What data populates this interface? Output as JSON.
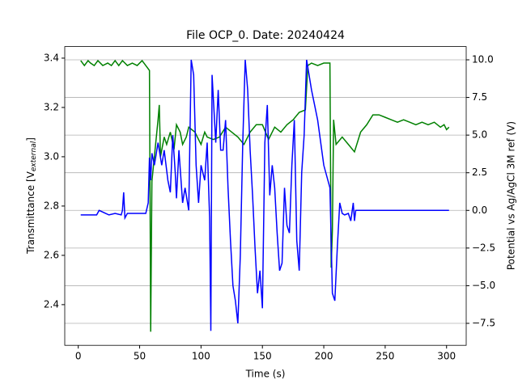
{
  "chart_data": {
    "type": "line",
    "title": "File OCP_0. Date: 20240424",
    "xlabel": "Time (s)",
    "ylabel_main": "Transmittance [V",
    "ylabel_sub": "external",
    "ylabel_end": "]",
    "y2label": "Potential vs Ag/AgCl 3M ref (V)",
    "xlim": [
      -11,
      316
    ],
    "xticks": [
      0,
      50,
      100,
      150,
      200,
      250,
      300
    ],
    "ylim": [
      2.235,
      3.447
    ],
    "yticks": [
      2.4,
      2.6,
      2.8,
      {
        "value": 3.0,
        "label": "3.0"
      },
      3.2,
      3.4
    ],
    "y2lim": [
      -8.96,
      10.88
    ],
    "y2ticks": [
      {
        "value": -7.5,
        "label": "−7.5"
      },
      {
        "value": -5,
        "label": "−5.0"
      },
      {
        "value": -2.5,
        "label": "−2.5"
      },
      {
        "value": 0,
        "label": "0.0"
      },
      {
        "value": 2.5,
        "label": "2.5"
      },
      {
        "value": 5,
        "label": "5.0"
      },
      {
        "value": 7.5,
        "label": "7.5"
      },
      {
        "value": 10,
        "label": "10.0"
      }
    ],
    "grid": "y2",
    "ylabel_color": "green",
    "y2label_color": "#0000ff",
    "series": [
      {
        "color": "green",
        "axis": "y",
        "x": [
          2,
          5,
          8,
          10,
          13,
          16,
          20,
          24,
          27,
          30,
          33,
          36,
          40,
          44,
          48,
          52,
          55,
          58,
          59,
          60,
          62,
          64,
          65,
          66,
          67,
          70,
          72,
          75,
          78,
          80,
          83,
          85,
          88,
          90,
          95,
          100,
          103,
          105,
          110,
          115,
          120,
          125,
          130,
          135,
          140,
          145,
          150,
          155,
          160,
          165,
          170,
          175,
          180,
          185,
          187,
          190,
          195,
          200,
          205,
          206,
          207,
          208,
          210,
          215,
          220,
          225,
          230,
          235,
          240,
          245,
          250,
          255,
          260,
          265,
          270,
          275,
          280,
          285,
          290,
          295,
          298,
          300,
          302
        ],
        "values": [
          3.39,
          3.37,
          3.39,
          3.38,
          3.37,
          3.39,
          3.37,
          3.38,
          3.37,
          3.39,
          3.37,
          3.39,
          3.37,
          3.38,
          3.37,
          3.39,
          3.37,
          3.35,
          2.29,
          2.9,
          3.0,
          3.1,
          3.15,
          3.21,
          3.0,
          3.08,
          3.05,
          3.1,
          3.03,
          3.13,
          3.1,
          3.05,
          3.08,
          3.12,
          3.1,
          3.05,
          3.1,
          3.08,
          3.07,
          3.08,
          3.12,
          3.1,
          3.08,
          3.05,
          3.1,
          3.13,
          3.13,
          3.07,
          3.12,
          3.1,
          3.13,
          3.15,
          3.18,
          3.19,
          3.37,
          3.38,
          3.37,
          3.38,
          3.38,
          2.55,
          2.7,
          3.15,
          3.05,
          3.08,
          3.05,
          3.02,
          3.1,
          3.13,
          3.17,
          3.17,
          3.16,
          3.15,
          3.14,
          3.15,
          3.14,
          3.13,
          3.14,
          3.13,
          3.14,
          3.12,
          3.13,
          3.11,
          3.12
        ]
      },
      {
        "color": "#0000ff",
        "axis": "y2",
        "x": [
          2,
          10,
          15,
          17,
          25,
          30,
          35,
          36,
          37,
          38,
          40,
          50,
          55,
          57,
          58,
          59,
          60,
          62,
          65,
          68,
          70,
          73,
          75,
          77,
          79,
          80,
          82,
          85,
          87,
          90,
          92,
          94,
          96,
          98,
          100,
          103,
          105,
          107,
          108,
          109,
          110,
          112,
          114,
          116,
          118,
          120,
          122,
          124,
          126,
          128,
          130,
          132,
          134,
          136,
          138,
          140,
          142,
          144,
          146,
          148,
          150,
          152,
          154,
          156,
          158,
          160,
          162,
          164,
          166,
          168,
          170,
          172,
          174,
          176,
          178,
          180,
          182,
          184,
          186,
          188,
          190,
          195,
          200,
          205,
          207,
          209,
          211,
          213,
          215,
          217,
          220,
          222,
          224,
          225,
          226,
          260,
          300,
          302
        ],
        "values": [
          -0.3,
          -0.3,
          -0.3,
          0.0,
          -0.3,
          -0.2,
          -0.3,
          0.0,
          1.2,
          -0.5,
          -0.2,
          -0.2,
          -0.2,
          0.5,
          3.5,
          2.0,
          3.8,
          3.0,
          4.5,
          3.0,
          4.0,
          2.0,
          1.2,
          5.0,
          2.5,
          0.8,
          4.0,
          0.5,
          1.5,
          0.0,
          10.0,
          9.0,
          3.0,
          0.5,
          3.0,
          2.0,
          4.5,
          -0.5,
          -8.0,
          9.0,
          7.5,
          4.5,
          8.0,
          4.0,
          4.0,
          6.0,
          1.5,
          -2.0,
          -5.0,
          -6.0,
          -7.5,
          -3.0,
          4.5,
          10.0,
          8.0,
          4.0,
          1.0,
          -2.5,
          -5.5,
          -4.0,
          -6.5,
          4.5,
          7.0,
          1.0,
          3.0,
          1.5,
          -1.5,
          -4.0,
          -3.5,
          1.5,
          -1.0,
          -1.5,
          3.0,
          6.0,
          -2.0,
          -4.0,
          2.5,
          5.0,
          10.0,
          9.0,
          8.0,
          6.0,
          3.0,
          1.5,
          -5.5,
          -6.0,
          -2.5,
          0.5,
          -0.2,
          -0.3,
          -0.2,
          -0.7,
          0.5,
          -0.7,
          0.0,
          0.0,
          0.0,
          0.0
        ]
      }
    ]
  }
}
